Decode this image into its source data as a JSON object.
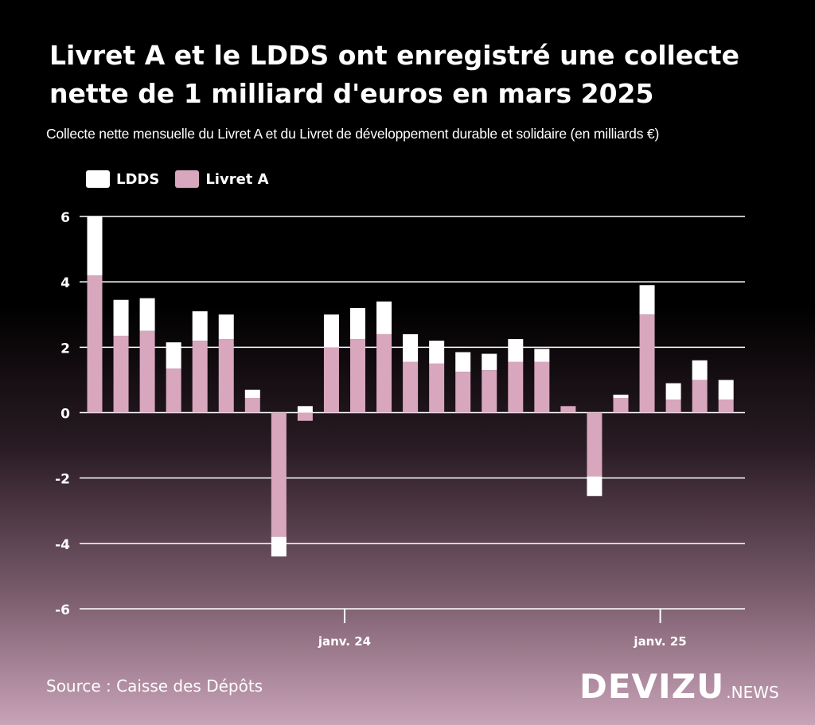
{
  "title": "Livret A et le LDDS ont enregistré une collecte nette de 1 milliard d'euros en mars 2025",
  "subtitle": "Collecte nette mensuelle du Livret A et du Livret de développement durable et solidaire (en milliards €)",
  "source": "Source : Caisse des Dépôts",
  "brand": {
    "main": "DEVIZU",
    "suffix": ".NEWS"
  },
  "colors": {
    "ldds": "#ffffff",
    "livret_a": "#d8a6bd",
    "gridline": "#ffffff"
  },
  "legend": [
    {
      "key": "ldds",
      "label": "LDDS"
    },
    {
      "key": "livret_a",
      "label": "Livret A"
    }
  ],
  "chart_data": {
    "type": "bar",
    "stacked": true,
    "title": "Livret A et le LDDS ont enregistré une collecte nette de 1 milliard d'euros en mars 2025",
    "xlabel": "",
    "ylabel": "",
    "ylim": [
      -6,
      6
    ],
    "yticks": [
      6,
      4,
      2,
      0,
      -2,
      -4,
      -6
    ],
    "grid": true,
    "legend_position": "top-left",
    "x_tick_labels": [
      {
        "label": "janv. 24",
        "after_bar_index": 9
      },
      {
        "label": "janv. 25",
        "after_bar_index": 21
      }
    ],
    "bars": [
      {
        "livret_a": 4.2,
        "ldds": 1.8
      },
      {
        "livret_a": 2.35,
        "ldds": 1.1
      },
      {
        "livret_a": 2.5,
        "ldds": 1.0
      },
      {
        "livret_a": 1.35,
        "ldds": 0.8
      },
      {
        "livret_a": 2.2,
        "ldds": 0.9
      },
      {
        "livret_a": 2.25,
        "ldds": 0.75
      },
      {
        "livret_a": 0.45,
        "ldds": 0.25
      },
      {
        "livret_a": -3.8,
        "ldds": -0.6
      },
      {
        "livret_a": -0.25,
        "ldds": 0.2
      },
      {
        "livret_a": 2.0,
        "ldds": 1.0
      },
      {
        "livret_a": 2.25,
        "ldds": 0.95
      },
      {
        "livret_a": 2.4,
        "ldds": 1.0
      },
      {
        "livret_a": 1.55,
        "ldds": 0.85
      },
      {
        "livret_a": 1.5,
        "ldds": 0.7
      },
      {
        "livret_a": 1.25,
        "ldds": 0.6
      },
      {
        "livret_a": 1.3,
        "ldds": 0.5
      },
      {
        "livret_a": 1.55,
        "ldds": 0.7
      },
      {
        "livret_a": 1.55,
        "ldds": 0.4
      },
      {
        "livret_a": 0.2,
        "ldds": 0.0
      },
      {
        "livret_a": -1.95,
        "ldds": -0.6
      },
      {
        "livret_a": 0.45,
        "ldds": 0.1
      },
      {
        "livret_a": 3.0,
        "ldds": 0.9
      },
      {
        "livret_a": 0.4,
        "ldds": 0.5
      },
      {
        "livret_a": 1.0,
        "ldds": 0.6
      },
      {
        "livret_a": 0.4,
        "ldds": 0.6
      }
    ]
  }
}
